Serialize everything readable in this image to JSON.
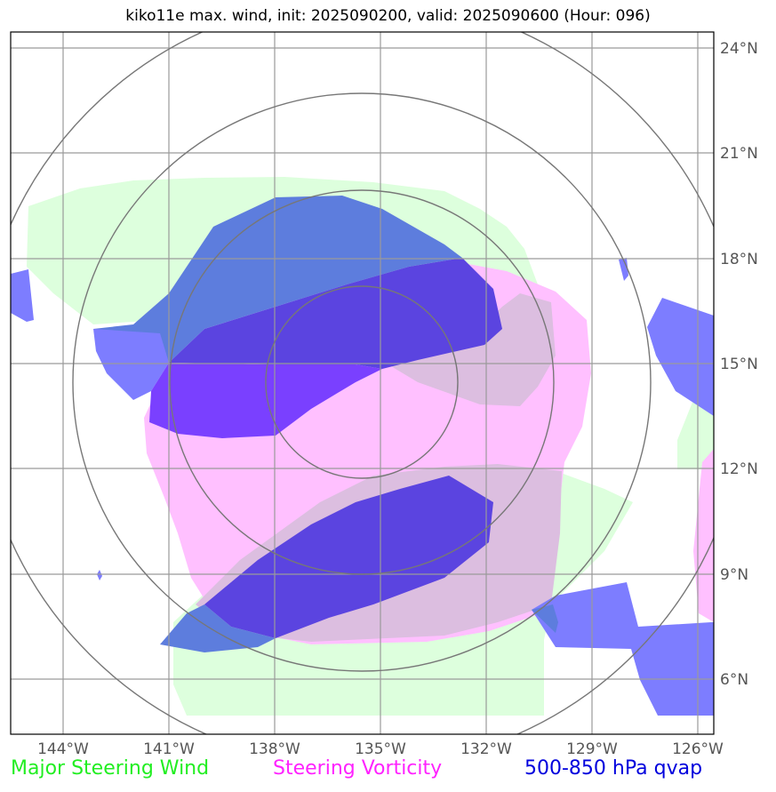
{
  "title": "kiko11e max. wind, init: 2025090200, valid: 2025090600 (Hour: 096)",
  "colors": {
    "major_steering_wind": "#22ee22",
    "steering_vorticity": "#ff22ff",
    "qvap": "#0000dd",
    "wind_fill": "#ddffdd",
    "vorticity_fill": "#ffc0ff",
    "qvap_fill": "#7d7dff",
    "grid": "#9a9a9a",
    "rings": "#777777"
  },
  "lat_labels": [
    "24°N",
    "21°N",
    "18°N",
    "15°N",
    "12°N",
    "9°N",
    "6°N"
  ],
  "lon_labels": [
    "144°W",
    "141°W",
    "138°W",
    "135°W",
    "132°W",
    "129°W",
    "126°W"
  ],
  "legend": {
    "wind": "Major Steering Wind",
    "vorticity": "Steering Vorticity",
    "qvap": "500-850 hPa qvap"
  }
}
